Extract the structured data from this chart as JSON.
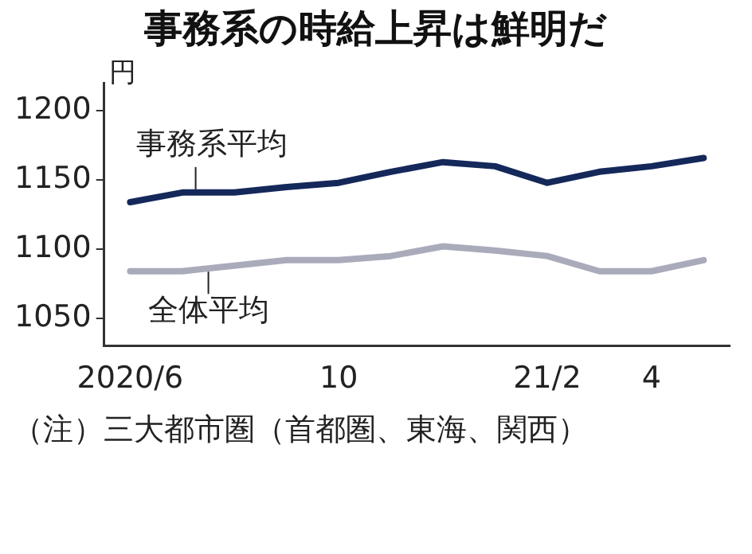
{
  "chart_data": {
    "type": "line",
    "title": "事務系の時給上昇は鮮明だ",
    "ylabel": "円",
    "categories": [
      "2020/6",
      null,
      null,
      null,
      "10",
      null,
      null,
      null,
      "21/2",
      null,
      "4",
      null
    ],
    "series": [
      {
        "name": "事務系平均",
        "color": "#14285a",
        "values": [
          1134,
          1141,
          1141,
          1145,
          1148,
          1156,
          1163,
          1160,
          1148,
          1156,
          1160,
          1166
        ]
      },
      {
        "name": "全体平均",
        "color": "#a9abbb",
        "values": [
          1084,
          1084,
          1088,
          1092,
          1092,
          1095,
          1102,
          1099,
          1095,
          1084,
          1084,
          1092
        ]
      }
    ],
    "ylim": [
      1030,
      1220
    ],
    "yticks": [
      1050,
      1100,
      1150,
      1200
    ],
    "grid": false,
    "legend": false,
    "marker": "none",
    "line_style": "solid",
    "annotations": [
      "（注）三大都市圏（首都圏、東海、関西）"
    ]
  }
}
